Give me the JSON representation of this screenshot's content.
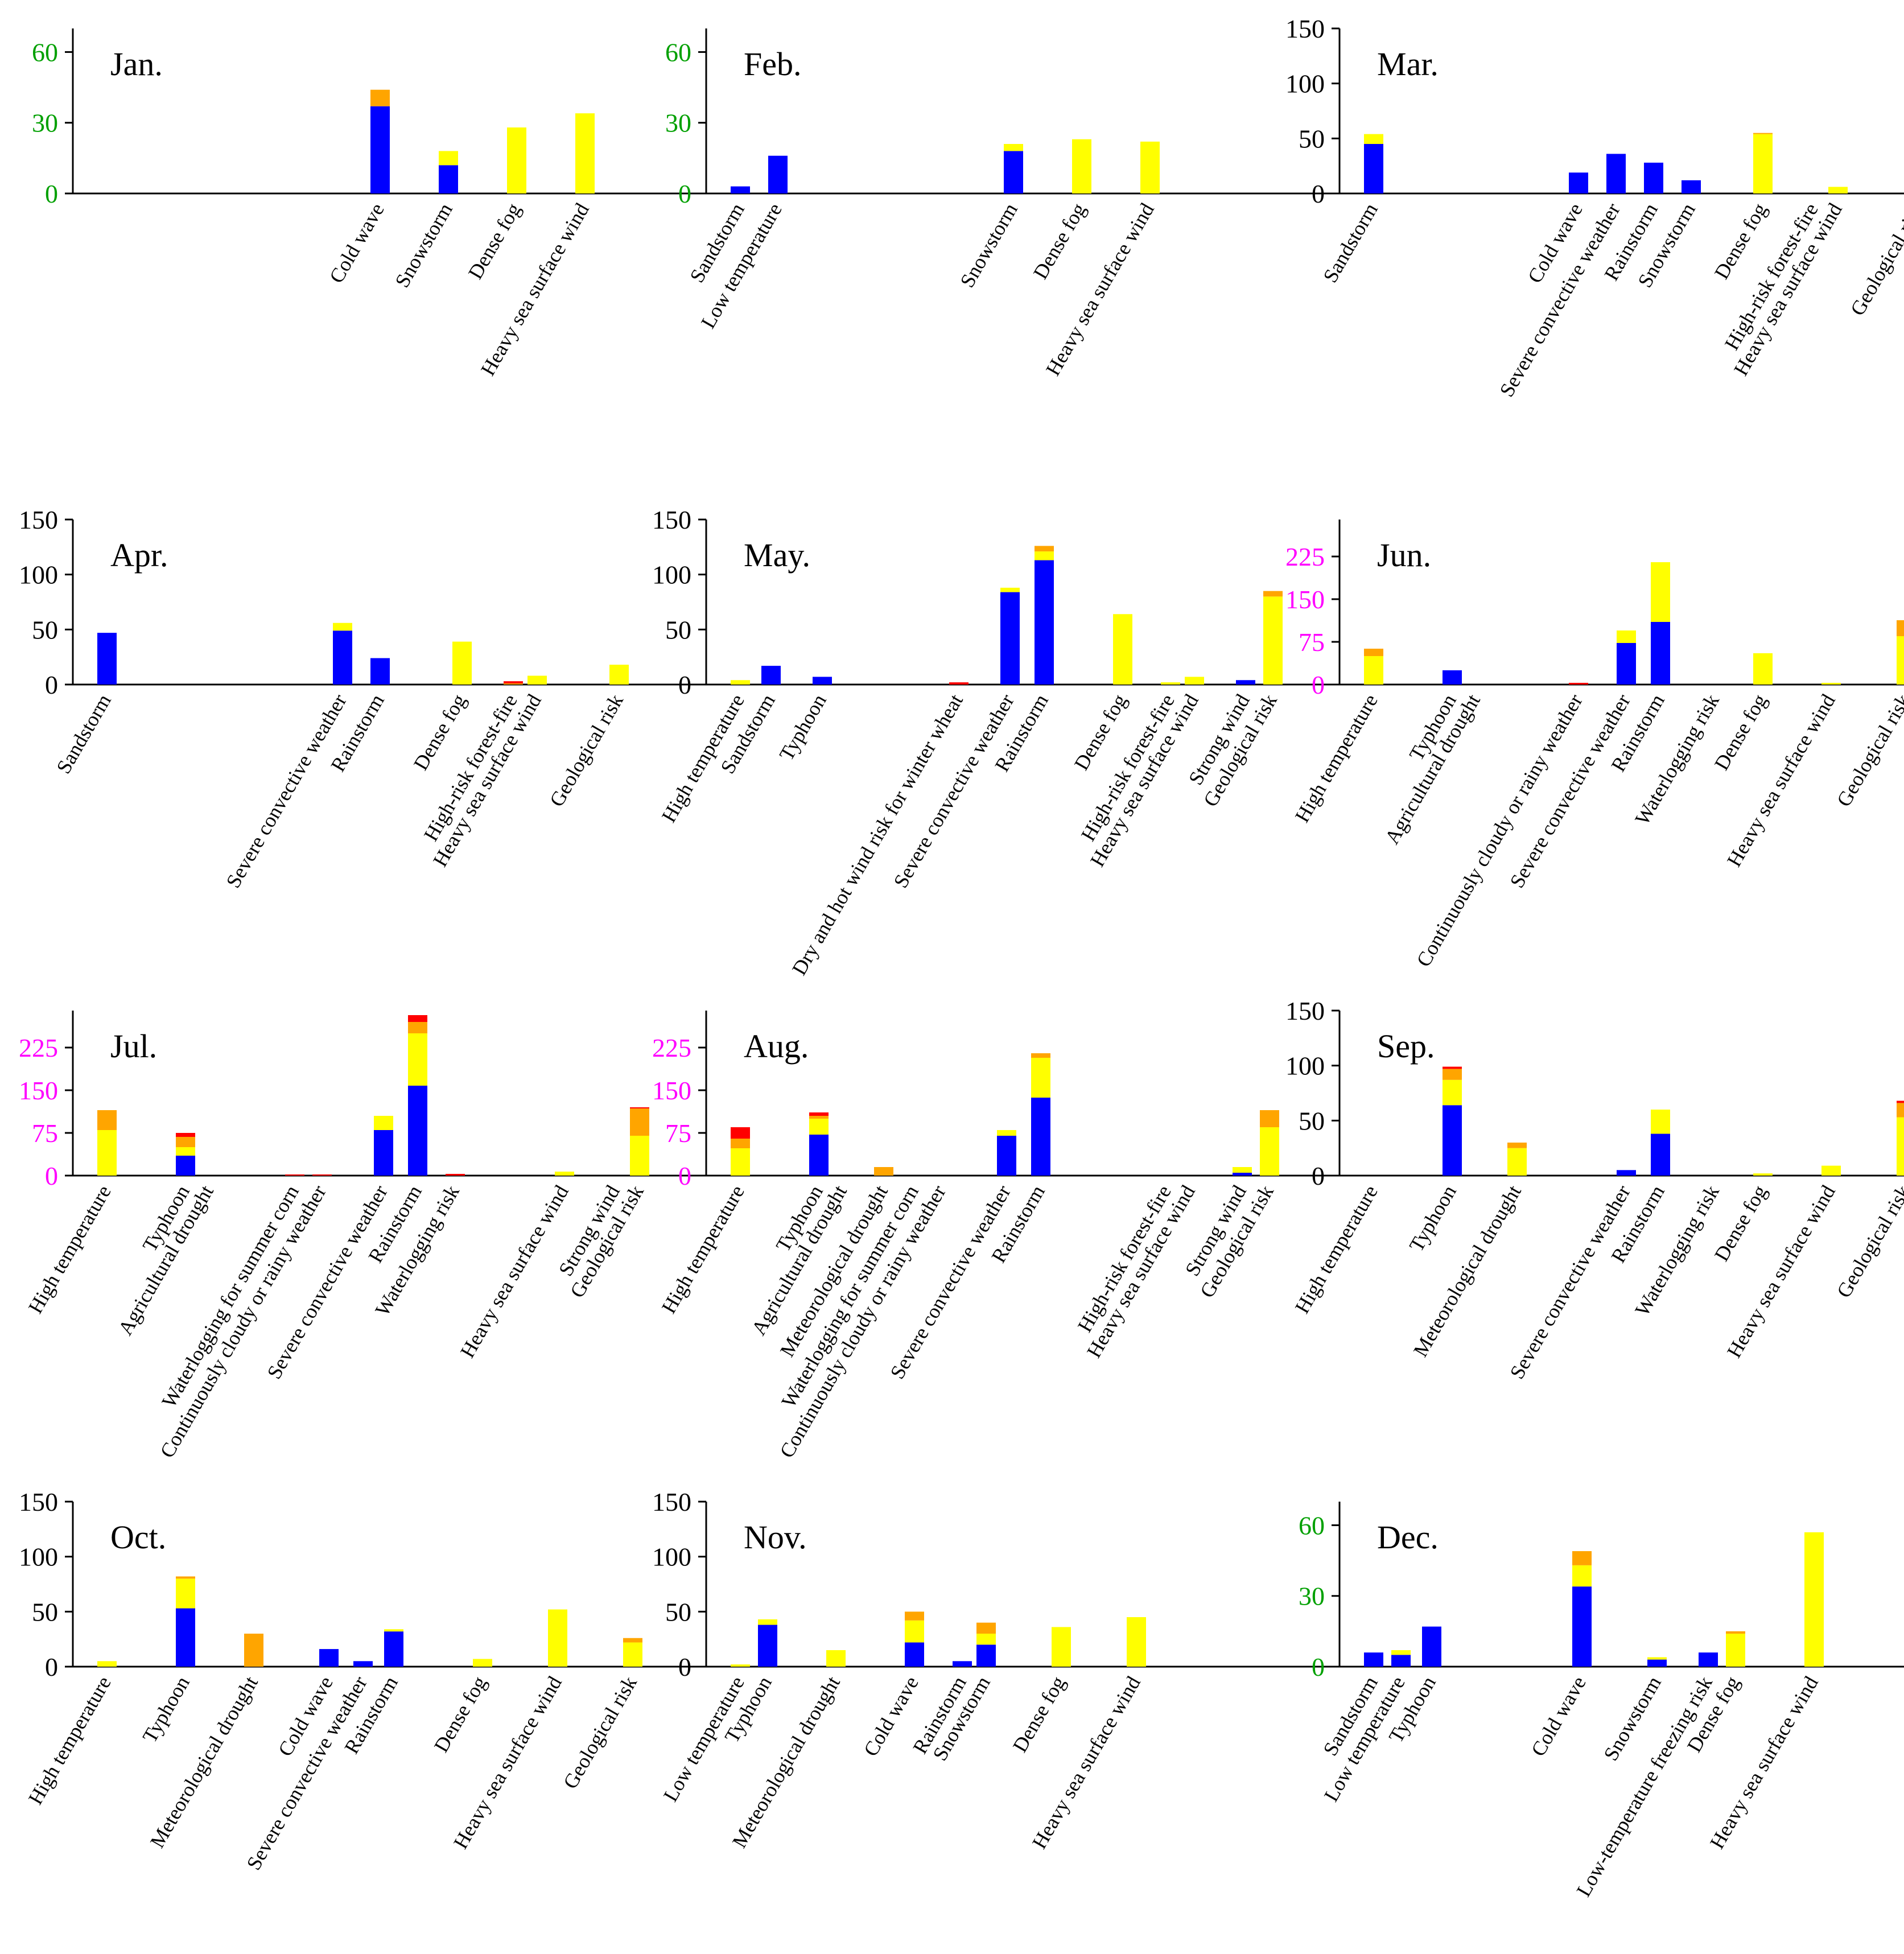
{
  "colors": {
    "blue": "#0000ff",
    "yellow": "#ffff00",
    "orange": "#ffa500",
    "red": "#ff0000",
    "axis": "#000000",
    "green_tick": "#00a000",
    "magenta_tick": "#ff00ff",
    "black_tick": "#000000"
  },
  "chart_data": [
    {
      "type": "bar",
      "stacked": true,
      "title": "Jan.",
      "ylim": [
        0,
        70
      ],
      "yticks": [
        0,
        30,
        60
      ],
      "tick_color": "green",
      "categories": [
        "",
        "",
        "",
        "",
        "Cold wave",
        "Snowstorm",
        "Dense fog",
        "Heavy sea surface wind"
      ],
      "positions": [
        0,
        1,
        2,
        3,
        4,
        5,
        6,
        7
      ],
      "series": [
        {
          "name": "blue",
          "values": [
            0,
            0,
            0,
            0,
            37,
            12,
            0,
            0
          ]
        },
        {
          "name": "yellow",
          "values": [
            0,
            0,
            0,
            0,
            0,
            6,
            28,
            34
          ]
        },
        {
          "name": "orange",
          "values": [
            0,
            0,
            0,
            0,
            7,
            0,
            0,
            0
          ]
        },
        {
          "name": "red",
          "values": [
            0,
            0,
            0,
            0,
            0,
            0,
            0,
            0
          ]
        }
      ]
    },
    {
      "type": "bar",
      "stacked": true,
      "title": "Feb.",
      "ylim": [
        0,
        70
      ],
      "yticks": [
        0,
        30,
        60
      ],
      "tick_color": "green",
      "categories": [
        "Sandstorm",
        "Low temperature",
        "",
        "",
        "Snowstorm",
        "Dense fog",
        "Heavy sea surface wind"
      ],
      "positions": [
        0,
        0.55,
        1,
        3,
        4,
        5,
        6
      ],
      "series": [
        {
          "name": "blue",
          "values": [
            3,
            16,
            0,
            0,
            18,
            0,
            0
          ]
        },
        {
          "name": "yellow",
          "values": [
            0,
            0,
            0,
            0,
            3,
            23,
            22
          ]
        },
        {
          "name": "orange",
          "values": [
            0,
            0,
            0,
            0,
            0,
            0,
            0
          ]
        },
        {
          "name": "red",
          "values": [
            0,
            0,
            0,
            0,
            0,
            0,
            0
          ]
        }
      ]
    },
    {
      "type": "bar",
      "stacked": true,
      "title": "Mar.",
      "ylim": [
        0,
        150
      ],
      "yticks": [
        0,
        50,
        100,
        150
      ],
      "tick_color": "black",
      "categories": [
        "Sandstorm",
        "",
        "",
        "Cold wave",
        "Severe convective weather",
        "Rainstorm",
        "Snowstorm",
        "Dense fog",
        "High-risk forest-fire",
        "Heavy sea surface wind",
        "Geological risk"
      ],
      "positions": [
        0,
        1,
        2,
        3,
        3.55,
        4.1,
        4.65,
        5.7,
        6.45,
        6.8,
        8
      ],
      "series": [
        {
          "name": "blue",
          "values": [
            45,
            0,
            0,
            19,
            36,
            28,
            12,
            0,
            0,
            0,
            0
          ]
        },
        {
          "name": "yellow",
          "values": [
            9,
            0,
            0,
            0,
            0,
            0,
            0,
            54,
            0,
            6,
            3
          ]
        },
        {
          "name": "orange",
          "values": [
            0,
            0,
            0,
            0,
            0,
            0,
            0,
            1,
            0,
            0,
            0
          ]
        },
        {
          "name": "red",
          "values": [
            0,
            0,
            0,
            0,
            0,
            0,
            0,
            0,
            0,
            0,
            0
          ]
        }
      ]
    },
    {
      "type": "bar",
      "stacked": true,
      "title": "Apr.",
      "ylim": [
        0,
        150
      ],
      "yticks": [
        0,
        50,
        100,
        150
      ],
      "tick_color": "black",
      "categories": [
        "Sandstorm",
        "",
        "",
        "Severe convective weather",
        "Rainstorm",
        "Dense fog",
        "High-risk forest-fire",
        "Heavy sea surface wind",
        "Geological risk"
      ],
      "positions": [
        0,
        1,
        2,
        3.45,
        4,
        5.2,
        5.95,
        6.3,
        7.5
      ],
      "series": [
        {
          "name": "blue",
          "values": [
            47,
            0,
            0,
            49,
            24,
            0,
            0,
            0,
            0
          ]
        },
        {
          "name": "yellow",
          "values": [
            0,
            0,
            0,
            7,
            0,
            39,
            0,
            8,
            18
          ]
        },
        {
          "name": "orange",
          "values": [
            0,
            0,
            0,
            0,
            0,
            0,
            1,
            0,
            0
          ]
        },
        {
          "name": "red",
          "values": [
            0,
            0,
            0,
            0,
            0,
            0,
            2,
            0,
            0
          ]
        }
      ]
    },
    {
      "type": "bar",
      "stacked": true,
      "title": "May.",
      "ylim": [
        0,
        150
      ],
      "yticks": [
        0,
        50,
        100,
        150
      ],
      "tick_color": "black",
      "categories": [
        "High temperature",
        "Sandstorm",
        "Typhoon",
        "Dry and hot wind risk for winter wheat",
        "Severe convective weather",
        "Rainstorm",
        "Dense fog",
        "High-risk forest-fire",
        "Heavy sea surface wind",
        "Strong wind",
        "Geological risk"
      ],
      "positions": [
        0,
        0.45,
        1.2,
        3.2,
        3.95,
        4.45,
        5.6,
        6.3,
        6.65,
        7.4,
        7.8
      ],
      "series": [
        {
          "name": "blue",
          "values": [
            0,
            17,
            7,
            0,
            84,
            113,
            0,
            0,
            0,
            4,
            0
          ]
        },
        {
          "name": "yellow",
          "values": [
            4,
            0,
            0,
            0,
            4,
            8,
            64,
            2,
            7,
            0,
            80
          ]
        },
        {
          "name": "orange",
          "values": [
            0,
            0,
            0,
            0,
            0,
            5,
            0,
            0,
            0,
            0,
            5
          ]
        },
        {
          "name": "red",
          "values": [
            0,
            0,
            0,
            2,
            0,
            0,
            0,
            0,
            0,
            0,
            0
          ]
        }
      ]
    },
    {
      "type": "bar",
      "stacked": true,
      "title": "Jun.",
      "ylim": [
        0,
        290
      ],
      "yticks": [
        0,
        75,
        150,
        225
      ],
      "tick_color": "magenta",
      "categories": [
        "High temperature",
        "Typhoon",
        "Agricultural drought",
        "Continuously cloudy or rainy weather",
        "Severe convective weather",
        "Rainstorm",
        "Waterlogging risk",
        "Dense fog",
        "Heavy sea surface wind",
        "Geological risk"
      ],
      "positions": [
        0,
        1.15,
        1.5,
        3,
        3.7,
        4.2,
        5,
        5.7,
        6.7,
        7.8
      ],
      "series": [
        {
          "name": "blue",
          "values": [
            0,
            25,
            0,
            0,
            73,
            110,
            0,
            0,
            0,
            0
          ]
        },
        {
          "name": "yellow",
          "values": [
            50,
            0,
            0,
            0,
            22,
            105,
            0,
            55,
            3,
            85
          ]
        },
        {
          "name": "orange",
          "values": [
            13,
            0,
            0,
            0,
            0,
            0,
            0,
            0,
            0,
            28
          ]
        },
        {
          "name": "red",
          "values": [
            0,
            0,
            0,
            3,
            0,
            0,
            0,
            0,
            0,
            0
          ]
        }
      ]
    },
    {
      "type": "bar",
      "stacked": true,
      "title": "Jul.",
      "ylim": [
        0,
        290
      ],
      "yticks": [
        75,
        150,
        225
      ],
      "zero_label": "0",
      "tick_color": "magenta",
      "categories": [
        "High temperature",
        "Typhoon",
        "Agricultural drought",
        "Waterlogging for summer corn",
        "Continuously cloudy or rainy weather",
        "Severe convective weather",
        "Rainstorm",
        "Waterlogging risk",
        "Heavy sea surface wind",
        "Strong wind",
        "Geological risk"
      ],
      "positions": [
        0,
        1.15,
        1.5,
        2.75,
        3.15,
        4.05,
        4.55,
        5.1,
        6.7,
        7.45,
        7.8
      ],
      "series": [
        {
          "name": "blue",
          "values": [
            0,
            35,
            0,
            0,
            0,
            80,
            158,
            0,
            0,
            0,
            0
          ]
        },
        {
          "name": "yellow",
          "values": [
            80,
            15,
            0,
            0,
            0,
            25,
            92,
            0,
            7,
            0,
            70
          ]
        },
        {
          "name": "orange",
          "values": [
            35,
            18,
            0,
            0,
            0,
            0,
            20,
            0,
            0,
            0,
            48
          ]
        },
        {
          "name": "red",
          "values": [
            0,
            7,
            0,
            2,
            2,
            0,
            12,
            3,
            0,
            0,
            2
          ]
        }
      ]
    },
    {
      "type": "bar",
      "stacked": true,
      "title": "Aug.",
      "ylim": [
        0,
        290
      ],
      "yticks": [
        0,
        75,
        150,
        225
      ],
      "tick_color": "magenta",
      "categories": [
        "High temperature",
        "Typhoon",
        "Agricultural drought",
        "Meteorological drought",
        "Waterlogging for summer corn",
        "Continuously cloudy or rainy weather",
        "Severe convective weather",
        "Rainstorm",
        "High-risk forest-fire",
        "Heavy sea surface wind",
        "Strong wind",
        "Geological risk"
      ],
      "positions": [
        0,
        1.15,
        1.5,
        2.1,
        2.55,
        2.95,
        3.9,
        4.4,
        6.25,
        6.6,
        7.35,
        7.75
      ],
      "series": [
        {
          "name": "blue",
          "values": [
            0,
            72,
            0,
            0,
            0,
            0,
            70,
            137,
            0,
            0,
            5,
            0
          ]
        },
        {
          "name": "yellow",
          "values": [
            48,
            28,
            0,
            0,
            0,
            0,
            10,
            70,
            0,
            0,
            10,
            85
          ]
        },
        {
          "name": "orange",
          "values": [
            17,
            5,
            0,
            15,
            0,
            0,
            0,
            8,
            0,
            0,
            0,
            30
          ]
        },
        {
          "name": "red",
          "values": [
            20,
            6,
            0,
            0,
            0,
            0,
            0,
            0,
            0,
            0,
            0,
            0
          ]
        }
      ]
    },
    {
      "type": "bar",
      "stacked": true,
      "title": "Sep.",
      "ylim": [
        0,
        150
      ],
      "yticks": [
        0,
        50,
        100,
        150
      ],
      "tick_color": "black",
      "categories": [
        "High temperature",
        "Typhoon",
        "Meteorological drought",
        "Severe convective weather",
        "Rainstorm",
        "Waterlogging risk",
        "Dense fog",
        "Heavy sea surface wind",
        "Geological risk"
      ],
      "positions": [
        0,
        1.15,
        2.1,
        3.7,
        4.2,
        5,
        5.7,
        6.7,
        7.8
      ],
      "series": [
        {
          "name": "blue",
          "values": [
            0,
            64,
            0,
            5,
            38,
            0,
            0,
            0,
            0
          ]
        },
        {
          "name": "yellow",
          "values": [
            0,
            23,
            25,
            0,
            22,
            0,
            2,
            9,
            53
          ]
        },
        {
          "name": "orange",
          "values": [
            0,
            10,
            5,
            0,
            0,
            0,
            0,
            0,
            13
          ]
        },
        {
          "name": "red",
          "values": [
            0,
            2,
            0,
            0,
            0,
            0,
            0,
            0,
            2
          ]
        }
      ]
    },
    {
      "type": "bar",
      "stacked": true,
      "title": "Oct.",
      "ylim": [
        0,
        150
      ],
      "yticks": [
        0,
        50,
        100,
        150
      ],
      "tick_color": "black",
      "categories": [
        "High temperature",
        "Typhoon",
        "Meteorological drought",
        "Cold wave",
        "Severe convective weather",
        "Rainstorm",
        "Dense fog",
        "Heavy sea surface wind",
        "Geological risk"
      ],
      "positions": [
        0,
        1.15,
        2.15,
        3.25,
        3.75,
        4.2,
        5.5,
        6.6,
        7.7
      ],
      "series": [
        {
          "name": "blue",
          "values": [
            0,
            53,
            0,
            16,
            5,
            32,
            0,
            0,
            0
          ]
        },
        {
          "name": "yellow",
          "values": [
            5,
            27,
            0,
            0,
            0,
            2,
            7,
            52,
            22
          ]
        },
        {
          "name": "orange",
          "values": [
            0,
            2,
            30,
            0,
            0,
            0,
            0,
            0,
            4
          ]
        },
        {
          "name": "red",
          "values": [
            0,
            0,
            0,
            0,
            0,
            0,
            0,
            0,
            0
          ]
        }
      ]
    },
    {
      "type": "bar",
      "stacked": true,
      "title": "Nov.",
      "ylim": [
        0,
        150
      ],
      "yticks": [
        0,
        50,
        100,
        150
      ],
      "tick_color": "black",
      "categories": [
        "Low temperature",
        "Typhoon",
        "Meteorological drought",
        "Cold wave",
        "Rainstorm",
        "Snowstorm",
        "Dense fog",
        "Heavy sea surface wind"
      ],
      "positions": [
        0,
        0.4,
        1.4,
        2.55,
        3.25,
        3.6,
        4.7,
        5.8
      ],
      "series": [
        {
          "name": "blue",
          "values": [
            0,
            38,
            0,
            22,
            5,
            20,
            0,
            0
          ]
        },
        {
          "name": "yellow",
          "values": [
            2,
            5,
            15,
            20,
            0,
            10,
            36,
            45
          ]
        },
        {
          "name": "orange",
          "values": [
            0,
            0,
            0,
            8,
            0,
            10,
            0,
            0
          ]
        },
        {
          "name": "red",
          "values": [
            0,
            0,
            0,
            0,
            0,
            0,
            0,
            0
          ]
        }
      ]
    },
    {
      "type": "bar",
      "stacked": true,
      "title": "Dec.",
      "ylim": [
        0,
        70
      ],
      "yticks": [
        0,
        30,
        60
      ],
      "tick_color": "green",
      "categories": [
        "Sandstorm",
        "Low temperature",
        "Typhoon",
        "Cold wave",
        "Snowstorm",
        "Low-temperature freezing risk",
        "Dense fog",
        "Heavy sea surface wind"
      ],
      "positions": [
        0,
        0.4,
        0.85,
        3.05,
        4.15,
        4.9,
        5.3,
        6.45
      ],
      "series": [
        {
          "name": "blue",
          "values": [
            6,
            5,
            17,
            34,
            3,
            6,
            0,
            0
          ]
        },
        {
          "name": "yellow",
          "values": [
            0,
            2,
            0,
            9,
            1,
            0,
            14,
            57
          ]
        },
        {
          "name": "orange",
          "values": [
            0,
            0,
            0,
            6,
            0,
            0,
            1,
            0
          ]
        },
        {
          "name": "red",
          "values": [
            0,
            0,
            0,
            0,
            0,
            0,
            0,
            0
          ]
        }
      ]
    }
  ]
}
